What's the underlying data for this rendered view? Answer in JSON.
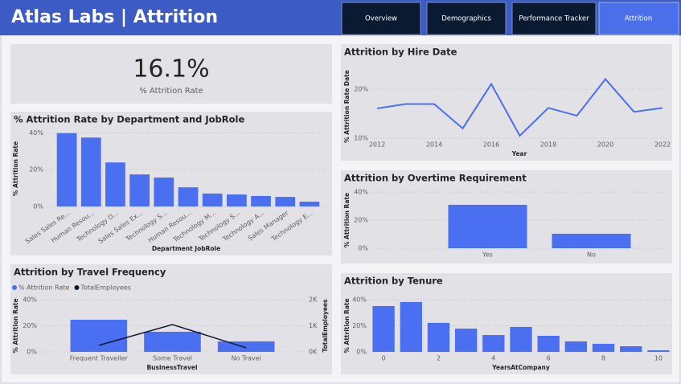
{
  "header": {
    "title": "Atlas Labs | Attrition"
  },
  "nav": [
    "Overview",
    "Demographics",
    "Performance Tracker",
    "Attrition"
  ],
  "kpi": {
    "value": "16.1%",
    "label": "% Attrition Rate"
  },
  "chart_data": [
    {
      "type": "bar",
      "title": "% Attrition Rate by Department and JobRole",
      "x_label": "Department JobRole",
      "y_label": "% Attrition Rate",
      "categories": [
        "Sales Sales Re...",
        "Human Resou...",
        "Technology D...",
        "Sales Sales Ex...",
        "Technology S...",
        "Human Resou...",
        "Technology M...",
        "Technology S...",
        "Technology A...",
        "Sales Manager",
        "Technology E..."
      ],
      "values": [
        39.8,
        37.4,
        23.9,
        17.4,
        15.7,
        10.4,
        7,
        6.5,
        5.7,
        5.2,
        2.6
      ],
      "color": "#4a6ff0",
      "ylim": [
        0,
        41
      ],
      "yticks": [
        {
          "value": 0,
          "label": "0%"
        },
        {
          "value": 20,
          "label": "20%"
        },
        {
          "value": 40,
          "label": "40%"
        }
      ],
      "grid": true
    },
    {
      "type": "line",
      "title": "Attrition by Hire Date",
      "x_label": "Year",
      "y_label": "% Attrition Rate Date",
      "x": [
        2012,
        2013,
        2014,
        2015,
        2016,
        2017,
        2018,
        2019,
        2020,
        2021,
        2022
      ],
      "values": [
        16.1,
        17,
        17,
        12,
        21.1,
        10.5,
        16.2,
        14.6,
        22.1,
        15.4,
        16.2
      ],
      "color": "#4a6ff0",
      "xlim": [
        2012,
        2022
      ],
      "xticks": [
        2012,
        2014,
        2016,
        2018,
        2020,
        2022
      ],
      "ylim": [
        10,
        23
      ],
      "yticks": [
        {
          "value": 10,
          "label": "10%"
        },
        {
          "value": 20,
          "label": "20%"
        }
      ],
      "grid": true
    },
    {
      "type": "bar",
      "title": "Attrition by Overtime Requirement",
      "y_label": "% Attrition Rate",
      "categories": [
        "Yes",
        "No"
      ],
      "values": [
        30.9,
        10.3
      ],
      "color": "#4a6ff0",
      "ylim": [
        0,
        40
      ],
      "yticks": [
        {
          "value": 0,
          "label": "0%"
        },
        {
          "value": 20,
          "label": "20%"
        },
        {
          "value": 40,
          "label": "40%"
        }
      ],
      "grid": true
    },
    {
      "type": "combo",
      "title": "Attrition by Travel Frequency",
      "x_label": "BusinessTravel",
      "y_label": "% Attrition Rate",
      "y2_label": "TotalEmployees",
      "categories": [
        "Frequent Traveller",
        "Some Travel",
        "No Travel"
      ],
      "series": [
        {
          "name": "% Attrition Rate",
          "type": "bar",
          "color": "#4a6ff0",
          "values": [
            24.6,
            15.4,
            8
          ]
        },
        {
          "name": "TotalEmployees",
          "type": "line",
          "color": "#0b1a33",
          "axis": "y2",
          "values": [
            250,
            1045,
            155
          ]
        }
      ],
      "ylim": [
        0,
        40
      ],
      "yticks": [
        {
          "value": 0,
          "label": "0%"
        },
        {
          "value": 20,
          "label": "20%"
        },
        {
          "value": 40,
          "label": "40%"
        }
      ],
      "y2lim": [
        0,
        2000
      ],
      "y2ticks": [
        {
          "value": 0,
          "label": "0K"
        },
        {
          "value": 1000,
          "label": "1K"
        },
        {
          "value": 2000,
          "label": "2K"
        }
      ],
      "grid": true,
      "legend": "top-left"
    },
    {
      "type": "bar",
      "title": "Attrition by Tenure",
      "x_label": "YearsAtCompany",
      "y_label": "% Attrition Rate",
      "x": [
        0,
        1,
        2,
        3,
        4,
        5,
        6,
        7,
        8,
        9,
        10
      ],
      "values": [
        35.1,
        38.2,
        22.2,
        17.8,
        12.9,
        19.1,
        12.3,
        8,
        6.2,
        4.3,
        1.2
      ],
      "color": "#4a6ff0",
      "xlim": [
        -0.5,
        10.5
      ],
      "xticks": [
        0,
        2,
        4,
        6,
        8,
        10
      ],
      "ylim": [
        0,
        40
      ],
      "yticks": [
        {
          "value": 0,
          "label": "0%"
        },
        {
          "value": 20,
          "label": "20%"
        },
        {
          "value": 40,
          "label": "40%"
        }
      ],
      "grid": true
    }
  ]
}
